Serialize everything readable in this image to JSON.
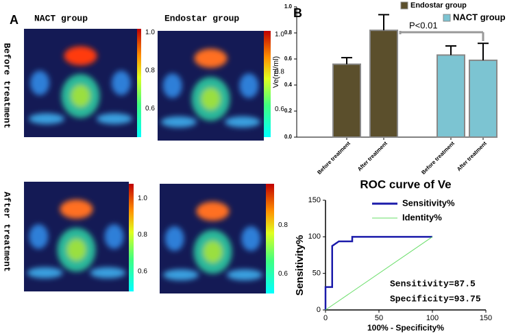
{
  "panel_a": {
    "label": "A",
    "columns": [
      "NACT group",
      "Endostar group"
    ],
    "rows": [
      "Before treatment",
      "After treatment"
    ],
    "colorbars": [
      {
        "lim": [
          0.45,
          1.02
        ],
        "ticks": [
          {
            "value": 1,
            "label": "1.0"
          },
          0.8,
          0.6
        ]
      },
      {
        "lim": [
          0.45,
          1.02
        ],
        "ticks": [
          {
            "value": 1,
            "label": "1.0"
          },
          0.8,
          0.6
        ]
      },
      {
        "lim": [
          0.49,
          1.08
        ],
        "ticks": [
          {
            "value": 1,
            "label": "1.0"
          },
          0.8,
          0.6
        ]
      },
      {
        "lim": [
          0.52,
          0.97
        ],
        "ticks": [
          0.8,
          0.6
        ]
      }
    ]
  },
  "panel_b_label": "B",
  "chart_data": [
    {
      "type": "bar",
      "ylabel": "Ve(ml/ml)",
      "categories": [
        "Before treatment",
        "After treatment",
        "Before treatment",
        "After treatment"
      ],
      "series": [
        {
          "name": "Endostar group",
          "color": "#5b4f2c",
          "values": [
            0.56,
            0.82,
            null,
            null
          ],
          "errors": [
            0.05,
            0.12,
            null,
            null
          ]
        },
        {
          "name": "NACT group",
          "color": "#7cc4d2",
          "values": [
            null,
            null,
            0.63,
            0.59
          ],
          "errors": [
            null,
            null,
            0.07,
            0.13
          ]
        }
      ],
      "ylim": [
        0,
        1
      ],
      "yticks": [
        {
          "value": 0,
          "label": "0.0"
        },
        0.2,
        0.4,
        0.6,
        0.8,
        {
          "value": 1,
          "label": "1.0"
        }
      ],
      "annotation": "P<0.01"
    },
    {
      "type": "line",
      "title": "ROC curve of Ve",
      "xlabel": "100% - Specificity%",
      "ylabel": "Sensitivity%",
      "series": [
        {
          "name": "Sensitivity%",
          "color": "#1a1aaa",
          "x": [
            0,
            0,
            6.25,
            6.25,
            12.5,
            25,
            25,
            100
          ],
          "values": [
            0,
            31.25,
            31.25,
            87.5,
            93.75,
            93.75,
            100,
            100
          ]
        },
        {
          "name": "Identity%",
          "color": "#66dd66",
          "x": [
            0,
            100
          ],
          "values": [
            0,
            100
          ]
        }
      ],
      "xlim": [
        0,
        150
      ],
      "ylim": [
        0,
        150
      ],
      "xticks": [
        0,
        50,
        100,
        150
      ],
      "yticks": [
        0,
        50,
        100,
        150
      ],
      "annotations": [
        "Sensitivity=87.5",
        "Specificity=93.75"
      ]
    }
  ]
}
